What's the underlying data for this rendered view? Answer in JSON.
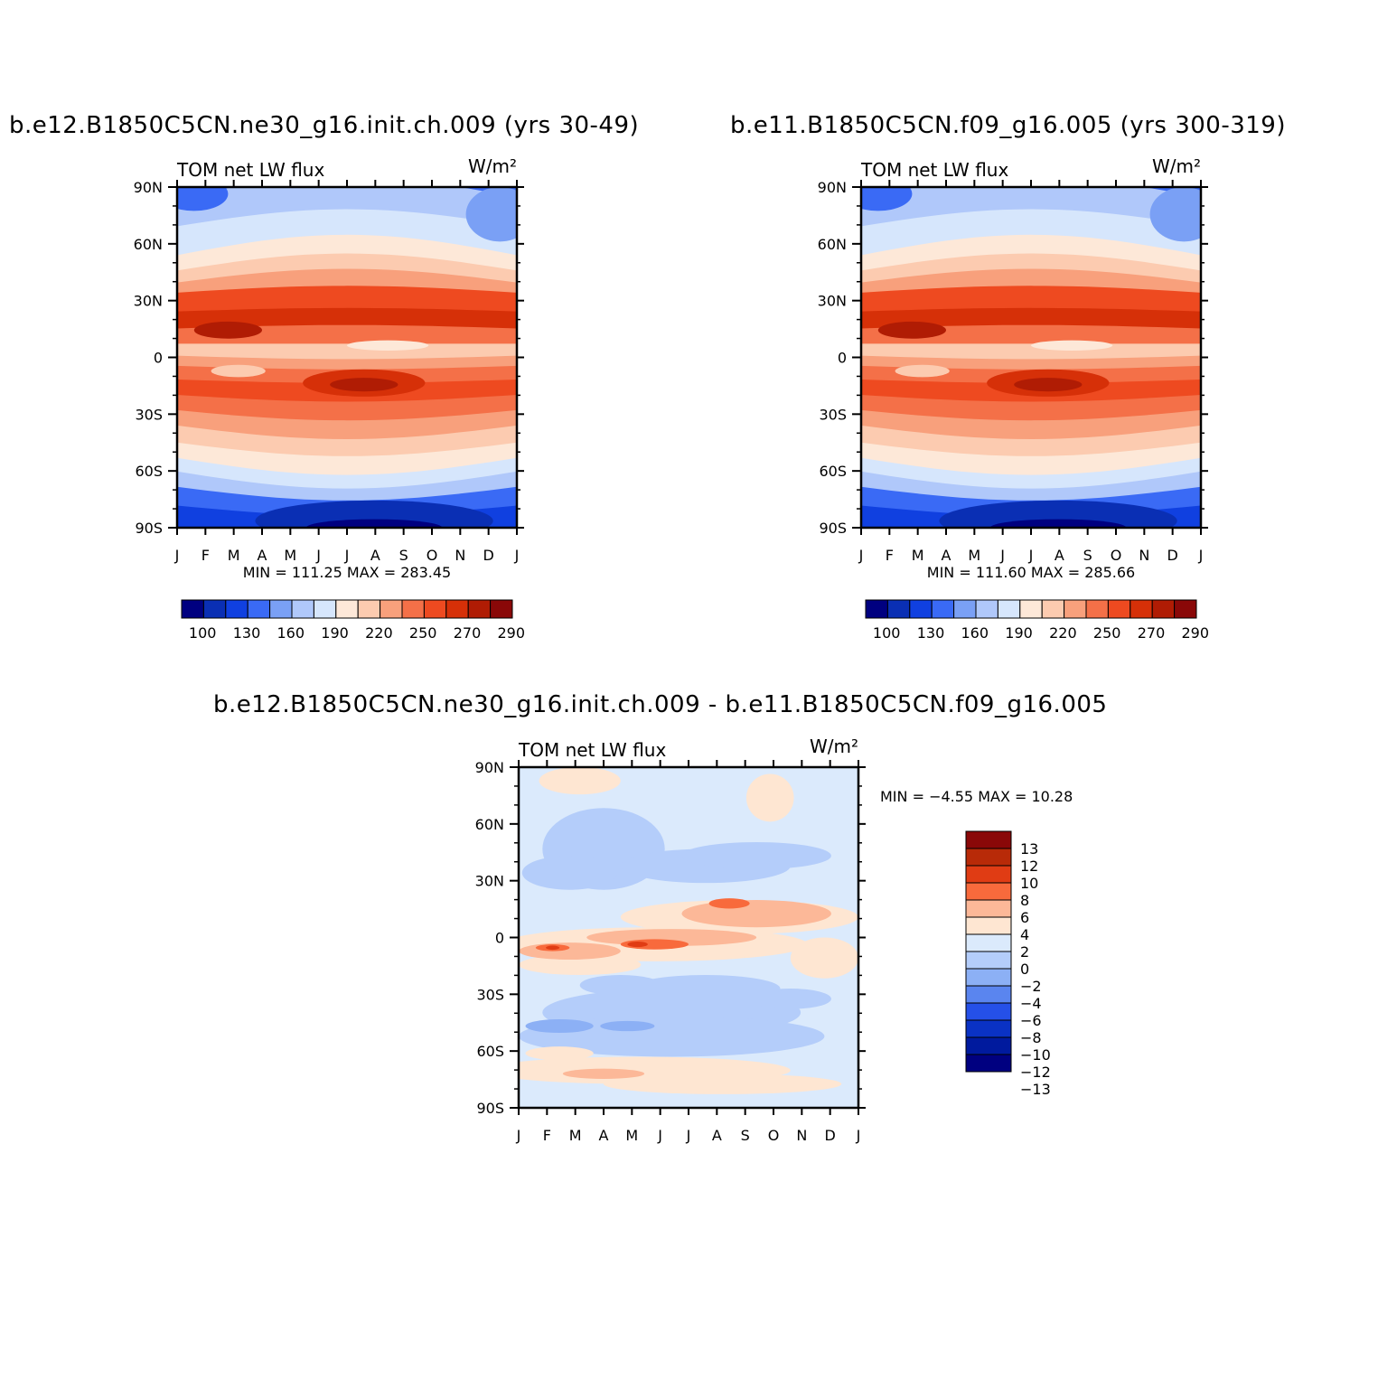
{
  "chart_data": [
    {
      "type": "heatmap",
      "title": "b.e12.B1850C5CN.ne30_g16.init.ch.009 (yrs 30-49)",
      "subtitle_left": "TOM net LW flux",
      "units": "W/m²",
      "x": [
        "J",
        "F",
        "M",
        "A",
        "M",
        "J",
        "J",
        "A",
        "S",
        "O",
        "N",
        "D",
        "J"
      ],
      "y": [
        "90N",
        "60N",
        "30N",
        "0",
        "30S",
        "60S",
        "90S"
      ],
      "ylim": [
        -90,
        90
      ],
      "stats": "MIN =  111.25 MAX =  283.45",
      "levels": [
        100,
        115,
        130,
        145,
        160,
        175,
        190,
        205,
        220,
        235,
        250,
        265,
        270,
        285,
        290
      ],
      "colorbar_labels": [
        "100",
        "130",
        "160",
        "190",
        "220",
        "250",
        "270",
        "290"
      ],
      "colors": [
        "#000080",
        "#0a2fb4",
        "#1040e0",
        "#3a6af5",
        "#7aa0f5",
        "#b0c8fa",
        "#d6e6fc",
        "#fde8d8",
        "#fccbb0",
        "#f8a07c",
        "#f47048",
        "#ee4a20",
        "#d63008",
        "#b01c04",
        "#8a0808"
      ]
    },
    {
      "type": "heatmap",
      "title": "b.e11.B1850C5CN.f09_g16.005 (yrs 300-319)",
      "subtitle_left": "TOM net LW flux",
      "units": "W/m²",
      "x": [
        "J",
        "F",
        "M",
        "A",
        "M",
        "J",
        "J",
        "A",
        "S",
        "O",
        "N",
        "D",
        "J"
      ],
      "y": [
        "90N",
        "60N",
        "30N",
        "0",
        "30S",
        "60S",
        "90S"
      ],
      "ylim": [
        -90,
        90
      ],
      "stats": "MIN =  111.60 MAX =  285.66",
      "colorbar_labels": [
        "100",
        "130",
        "160",
        "190",
        "220",
        "250",
        "270",
        "290"
      ]
    },
    {
      "type": "heatmap",
      "title": "b.e12.B1850C5CN.ne30_g16.init.ch.009 - b.e11.B1850C5CN.f09_g16.005",
      "subtitle_left": "TOM net LW flux",
      "units": "W/m²",
      "x": [
        "J",
        "F",
        "M",
        "A",
        "M",
        "J",
        "J",
        "A",
        "S",
        "O",
        "N",
        "D",
        "J"
      ],
      "y": [
        "90N",
        "60N",
        "30N",
        "0",
        "30S",
        "60S",
        "90S"
      ],
      "ylim": [
        -90,
        90
      ],
      "stats": "MIN =   -4.55 MAX =   10.28",
      "colorbar_labels": [
        "13",
        "12",
        "10",
        "8",
        "6",
        "4",
        "2",
        "0",
        "-2",
        "-4",
        "-6",
        "-8",
        "-10",
        "-12",
        "-13"
      ],
      "diff_colors": [
        "#8a0808",
        "#b82a08",
        "#e03c14",
        "#f86a3c",
        "#fcb898",
        "#fee6d2",
        "#dbeafc",
        "#b4cdfa",
        "#8cb0f5",
        "#5a85ef",
        "#2550e8",
        "#0a32c4",
        "#001a9e",
        "#000080"
      ]
    }
  ]
}
